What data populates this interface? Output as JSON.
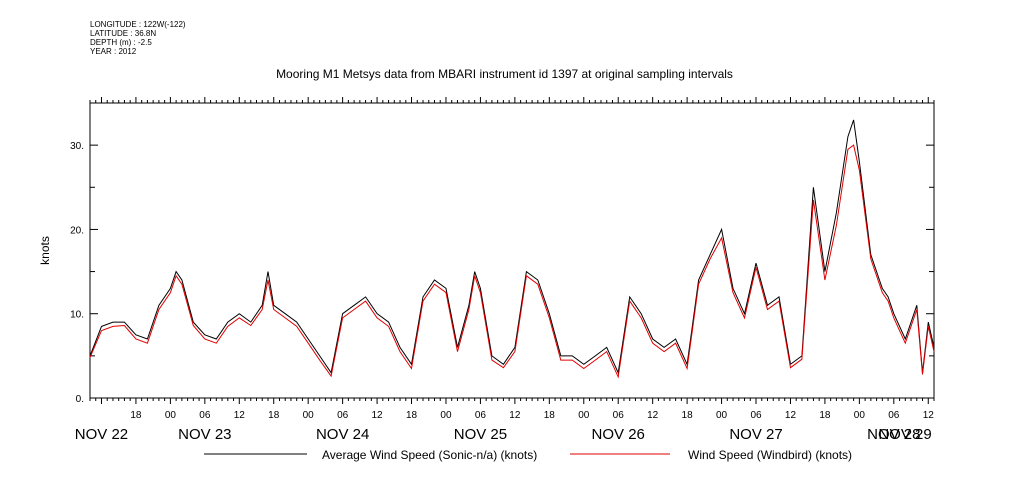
{
  "meta": {
    "longitude": "LONGITUDE : 122W(-122)",
    "latitude": "LATITUDE : 36.8N",
    "depth": "DEPTH (m) : -2.5",
    "year": "YEAR : 2012"
  },
  "colors": {
    "series1": "#000000",
    "series2": "#e00000",
    "axis": "#000000"
  },
  "chart_data": {
    "type": "line",
    "title": "Mooring M1 Metsys data from MBARI instrument id 1397 at original sampling intervals",
    "ylabel": "knots",
    "xlabel": "",
    "x_units": "hours since NOV 22 00",
    "xlim": [
      -14,
      133
    ],
    "ylim": [
      0,
      35
    ],
    "y_ticks": [
      0,
      10,
      20,
      30
    ],
    "y_tick_labels": [
      "0.",
      "10.",
      "20.",
      "30."
    ],
    "hour_ticks": [
      {
        "x": -6,
        "label": "18"
      },
      {
        "x": 0,
        "label": "00"
      },
      {
        "x": 6,
        "label": "06"
      },
      {
        "x": 12,
        "label": "12"
      },
      {
        "x": 18,
        "label": "18"
      },
      {
        "x": 24,
        "label": "00"
      },
      {
        "x": 30,
        "label": "06"
      },
      {
        "x": 36,
        "label": "12"
      },
      {
        "x": 42,
        "label": "18"
      },
      {
        "x": 48,
        "label": "00"
      },
      {
        "x": 54,
        "label": "06"
      },
      {
        "x": 60,
        "label": "12"
      },
      {
        "x": 66,
        "label": "18"
      },
      {
        "x": 72,
        "label": "00"
      },
      {
        "x": 78,
        "label": "06"
      },
      {
        "x": 84,
        "label": "12"
      },
      {
        "x": 90,
        "label": "18"
      },
      {
        "x": 96,
        "label": "00"
      },
      {
        "x": 102,
        "label": "06"
      },
      {
        "x": 108,
        "label": "12"
      },
      {
        "x": 114,
        "label": "18"
      },
      {
        "x": 120,
        "label": "00"
      },
      {
        "x": 126,
        "label": "06"
      },
      {
        "x": 132,
        "label": "12"
      }
    ],
    "date_labels": [
      {
        "x": -12,
        "label": "NOV 22"
      },
      {
        "x": 6,
        "label": "NOV 23"
      },
      {
        "x": 30,
        "label": "NOV 24"
      },
      {
        "x": 54,
        "label": "NOV 25"
      },
      {
        "x": 78,
        "label": "NOV 26"
      },
      {
        "x": 102,
        "label": "NOV 27"
      },
      {
        "x": 126,
        "label": "NOV 28"
      },
      {
        "x": 150,
        "label": "NOV 29"
      }
    ],
    "legend": [
      "Average Wind Speed (Sonic-n/a) (knots)",
      "Wind Speed (Windbird) (knots)"
    ],
    "series": [
      {
        "name": "Average Wind Speed (Sonic-n/a) (knots)",
        "x": [
          -14,
          -12,
          -10,
          -8,
          -6,
          -4,
          -2,
          0,
          1,
          2,
          4,
          6,
          8,
          10,
          12,
          14,
          16,
          17,
          18,
          20,
          22,
          24,
          26,
          28,
          30,
          32,
          34,
          36,
          38,
          40,
          42,
          44,
          46,
          48,
          50,
          52,
          53,
          54,
          56,
          58,
          60,
          62,
          64,
          66,
          68,
          70,
          72,
          74,
          76,
          78,
          80,
          82,
          84,
          86,
          88,
          90,
          91,
          92,
          94,
          96,
          98,
          100,
          102,
          104,
          106,
          108,
          110,
          112,
          114,
          116,
          118,
          119,
          120,
          122,
          124,
          125,
          126,
          128,
          130,
          131,
          132,
          133
        ],
        "y": [
          5,
          8.5,
          9,
          9,
          7.5,
          7,
          11,
          13,
          15,
          14,
          9,
          7.5,
          7,
          9,
          10,
          9,
          11,
          15,
          11,
          10,
          9,
          7,
          5,
          3,
          10,
          11,
          12,
          10,
          9,
          6,
          4,
          12,
          14,
          13,
          6,
          11,
          15,
          13,
          5,
          4,
          6,
          15,
          14,
          10,
          5,
          5,
          4,
          5,
          6,
          3,
          12,
          10,
          7,
          6,
          7,
          4,
          9,
          14,
          17,
          20,
          13,
          10,
          16,
          11,
          12,
          4,
          5,
          25,
          15,
          22,
          31,
          33,
          28,
          17,
          13,
          12,
          10,
          7,
          11,
          3,
          9,
          6
        ]
      },
      {
        "name": "Wind Speed (Windbird) (knots)",
        "x": [
          -14,
          -12,
          -10,
          -8,
          -6,
          -4,
          -2,
          0,
          1,
          2,
          4,
          6,
          8,
          10,
          12,
          14,
          16,
          17,
          18,
          20,
          22,
          24,
          26,
          28,
          30,
          32,
          34,
          36,
          38,
          40,
          42,
          44,
          46,
          48,
          50,
          52,
          53,
          54,
          56,
          58,
          60,
          62,
          64,
          66,
          68,
          70,
          72,
          74,
          76,
          78,
          80,
          82,
          84,
          86,
          88,
          90,
          91,
          92,
          94,
          96,
          98,
          100,
          102,
          104,
          106,
          108,
          110,
          112,
          114,
          116,
          118,
          119,
          120,
          122,
          124,
          125,
          126,
          128,
          130,
          131,
          132,
          133
        ],
        "y": [
          4.8,
          8,
          8.5,
          8.6,
          7,
          6.5,
          10.5,
          12.5,
          14.5,
          13.5,
          8.6,
          7,
          6.5,
          8.5,
          9.5,
          8.6,
          10.5,
          14,
          10.5,
          9.5,
          8.5,
          6.5,
          4.5,
          2.6,
          9.5,
          10.5,
          11.5,
          9.5,
          8.5,
          5.5,
          3.5,
          11.5,
          13.5,
          12.5,
          5.5,
          10.5,
          14.5,
          12.5,
          4.5,
          3.6,
          5.5,
          14.5,
          13.5,
          9.5,
          4.5,
          4.5,
          3.5,
          4.5,
          5.5,
          2.5,
          11.5,
          9.5,
          6.5,
          5.5,
          6.5,
          3.5,
          8.5,
          13.5,
          16.5,
          19,
          12.5,
          9.5,
          15.5,
          10.5,
          11.5,
          3.6,
          4.6,
          23.5,
          14,
          20.5,
          29.5,
          30,
          27,
          16.5,
          12.5,
          11.5,
          9.5,
          6.5,
          10.5,
          2.8,
          8.5,
          5.5
        ]
      }
    ]
  }
}
